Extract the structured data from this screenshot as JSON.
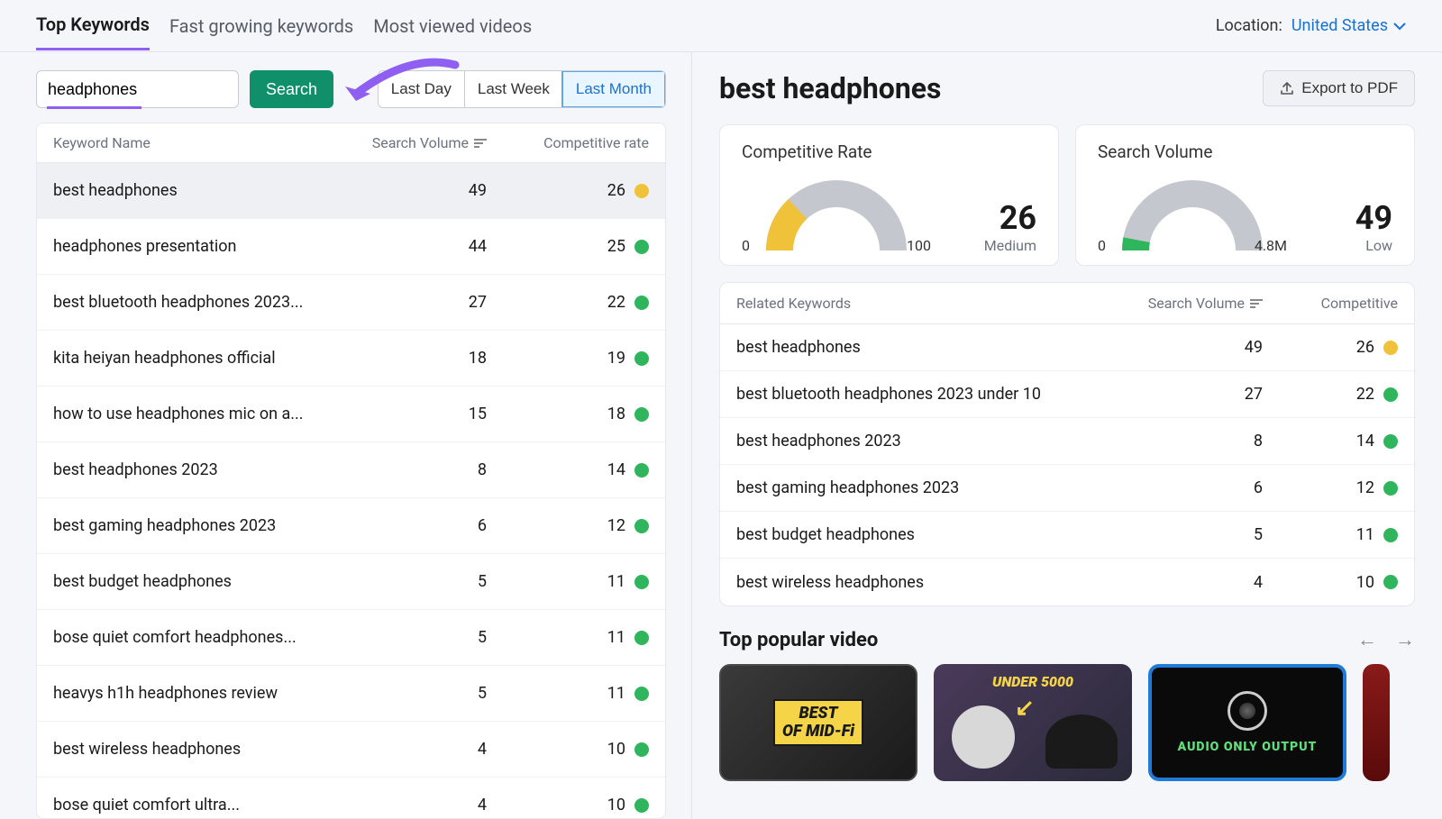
{
  "tabs": {
    "top_keywords": "Top Keywords",
    "fast_growing": "Fast growing keywords",
    "most_viewed": "Most viewed videos",
    "active_index": 0
  },
  "location": {
    "label": "Location:",
    "value": "United States"
  },
  "search": {
    "value": "headphones",
    "button": "Search"
  },
  "range": {
    "day": "Last Day",
    "week": "Last Week",
    "month": "Last Month",
    "active": "month"
  },
  "keyword_table": {
    "columns": {
      "name": "Keyword Name",
      "volume": "Search Volume",
      "competitive": "Competitive rate"
    },
    "rows": [
      {
        "name": "best headphones",
        "volume": "49",
        "competitive": "26",
        "dot": "#f0c23a",
        "selected": true
      },
      {
        "name": "headphones presentation",
        "volume": "44",
        "competitive": "25",
        "dot": "#2fb65d"
      },
      {
        "name": "best bluetooth headphones 2023...",
        "volume": "27",
        "competitive": "22",
        "dot": "#2fb65d"
      },
      {
        "name": "kita heiyan headphones official",
        "volume": "18",
        "competitive": "19",
        "dot": "#2fb65d"
      },
      {
        "name": "how to use headphones mic on a...",
        "volume": "15",
        "competitive": "18",
        "dot": "#2fb65d"
      },
      {
        "name": "best headphones 2023",
        "volume": "8",
        "competitive": "14",
        "dot": "#2fb65d"
      },
      {
        "name": "best gaming headphones 2023",
        "volume": "6",
        "competitive": "12",
        "dot": "#2fb65d"
      },
      {
        "name": "best budget headphones",
        "volume": "5",
        "competitive": "11",
        "dot": "#2fb65d"
      },
      {
        "name": "bose quiet comfort headphones...",
        "volume": "5",
        "competitive": "11",
        "dot": "#2fb65d"
      },
      {
        "name": "heavys h1h headphones review",
        "volume": "5",
        "competitive": "11",
        "dot": "#2fb65d"
      },
      {
        "name": "best wireless headphones",
        "volume": "4",
        "competitive": "10",
        "dot": "#2fb65d"
      },
      {
        "name": "bose quiet comfort ultra...",
        "volume": "4",
        "competitive": "10",
        "dot": "#2fb65d"
      }
    ]
  },
  "detail": {
    "title": "best headphones",
    "export": "Export to PDF"
  },
  "gauges": {
    "competitive": {
      "title": "Competitive Rate",
      "min": "0",
      "max": "100",
      "value": "26",
      "label": "Medium",
      "fill_color": "#f0c23a",
      "track_color": "#c4c8ce",
      "fraction": 0.26
    },
    "volume": {
      "title": "Search Volume",
      "min": "0",
      "max": "4.8M",
      "value": "49",
      "label": "Low",
      "fill_color": "#2fb65d",
      "track_color": "#c4c8ce",
      "fraction": 0.06
    }
  },
  "related": {
    "columns": {
      "name": "Related Keywords",
      "volume": "Search Volume",
      "competitive": "Competitive"
    },
    "rows": [
      {
        "name": "best headphones",
        "volume": "49",
        "competitive": "26",
        "dot": "#f0c23a"
      },
      {
        "name": "best bluetooth headphones 2023 under 10",
        "volume": "27",
        "competitive": "22",
        "dot": "#2fb65d"
      },
      {
        "name": "best headphones 2023",
        "volume": "8",
        "competitive": "14",
        "dot": "#2fb65d"
      },
      {
        "name": "best gaming headphones 2023",
        "volume": "6",
        "competitive": "12",
        "dot": "#2fb65d"
      },
      {
        "name": "best budget headphones",
        "volume": "5",
        "competitive": "11",
        "dot": "#2fb65d"
      },
      {
        "name": "best wireless headphones",
        "volume": "4",
        "competitive": "10",
        "dot": "#2fb65d"
      }
    ]
  },
  "videos": {
    "title": "Top popular video",
    "thumbs": {
      "t1_line1": "BEST",
      "t1_line2": "OF MID-Fi",
      "t2_top": "UNDER 5000",
      "t3_text": "AUDIO ONLY OUTPUT"
    }
  },
  "annotation": {
    "arrow_color": "#8f5ff2"
  }
}
